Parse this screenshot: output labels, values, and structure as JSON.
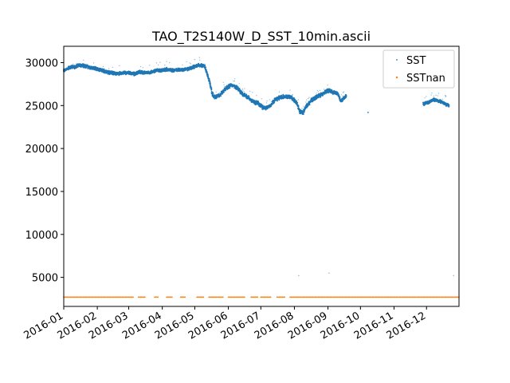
{
  "chart_data": {
    "type": "scatter",
    "title": "TAO_T2S140W_D_SST_10min.ascii",
    "xlabel": "",
    "ylabel": "",
    "x_type": "date",
    "xlim": [
      "2016-01-01",
      "2016-12-31"
    ],
    "ylim": [
      1620,
      31900
    ],
    "grid": false,
    "legend_position": "top-right",
    "x_ticks": [
      "2016-01-01",
      "2016-02-01",
      "2016-03-01",
      "2016-04-01",
      "2016-05-01",
      "2016-06-01",
      "2016-07-01",
      "2016-08-01",
      "2016-09-01",
      "2016-10-01",
      "2016-11-01",
      "2016-12-01"
    ],
    "x_tick_labels": [
      "2016-01",
      "2016-02",
      "2016-03",
      "2016-04",
      "2016-05",
      "2016-06",
      "2016-07",
      "2016-08",
      "2016-09",
      "2016-10",
      "2016-11",
      "2016-12"
    ],
    "y_ticks": [
      5000,
      10000,
      15000,
      20000,
      25000,
      30000
    ],
    "y_tick_labels": [
      "5000",
      "10000",
      "15000",
      "20000",
      "25000",
      "30000"
    ],
    "series": [
      {
        "name": "SST",
        "color": "#1f77b4",
        "marker": "point",
        "x": [
          "2016-01-01",
          "2016-01-06",
          "2016-01-11",
          "2016-01-16",
          "2016-01-21",
          "2016-01-26",
          "2016-01-31",
          "2016-02-05",
          "2016-02-10",
          "2016-02-15",
          "2016-02-20",
          "2016-02-25",
          "2016-03-01",
          "2016-03-06",
          "2016-03-11",
          "2016-03-16",
          "2016-03-21",
          "2016-03-26",
          "2016-03-31",
          "2016-04-05",
          "2016-04-10",
          "2016-04-15",
          "2016-04-20",
          "2016-04-25",
          "2016-04-30",
          "2016-05-05",
          "2016-05-10",
          "2016-05-12",
          "2016-05-15",
          "2016-05-17",
          "2016-05-20",
          "2016-05-25",
          "2016-05-30",
          "2016-06-04",
          "2016-06-09",
          "2016-06-14",
          "2016-06-19",
          "2016-06-24",
          "2016-06-29",
          "2016-07-04",
          "2016-07-09",
          "2016-07-14",
          "2016-07-19",
          "2016-07-24",
          "2016-07-29",
          "2016-08-03",
          "2016-08-06",
          "2016-08-09",
          "2016-08-12",
          "2016-08-17",
          "2016-08-22",
          "2016-08-27",
          "2016-09-01",
          "2016-09-05",
          "2016-09-10",
          "2016-09-13",
          "2016-09-18",
          "2016-10-08",
          "2016-11-28",
          "2016-12-03",
          "2016-12-08",
          "2016-12-13",
          "2016-12-18",
          "2016-12-22"
        ],
        "y": [
          29100,
          29300,
          29400,
          29600,
          29500,
          29300,
          29200,
          29000,
          28800,
          28700,
          28600,
          28700,
          28700,
          28600,
          28800,
          28700,
          28700,
          29000,
          29000,
          29100,
          29000,
          29100,
          29000,
          29200,
          29400,
          29600,
          29500,
          28800,
          27500,
          26200,
          25800,
          26200,
          26900,
          27300,
          26900,
          26200,
          25800,
          25300,
          25100,
          24500,
          24800,
          25500,
          25800,
          25900,
          25800,
          25200,
          24200,
          24000,
          24800,
          25500,
          25900,
          26200,
          26600,
          26400,
          26300,
          25400,
          26100,
          24200,
          25100,
          25300,
          25600,
          25400,
          25100,
          24900
        ],
        "y_band": [
          29000,
          29500,
          29600,
          29800,
          29700,
          29500,
          29400,
          29200,
          29000,
          28900,
          28800,
          28900,
          28900,
          28800,
          29000,
          28900,
          28900,
          29200,
          29200,
          29300,
          29200,
          29300,
          29200,
          29400,
          29600,
          29800,
          29700,
          29000,
          27800,
          26500,
          26100,
          26500,
          27200,
          27500,
          27200,
          26500,
          26100,
          25600,
          25400,
          24800,
          25100,
          25800,
          26100,
          26200,
          26100,
          25500,
          24500,
          24300,
          25100,
          25800,
          26200,
          26500,
          26900,
          26700,
          26500,
          25600,
          26300,
          24200,
          25300,
          25500,
          25800,
          25600,
          25300,
          25100
        ],
        "outliers_x": [
          "2016-08-05",
          "2016-09-02",
          "2016-12-26"
        ],
        "outliers_y": [
          5200,
          5500,
          5200
        ]
      },
      {
        "name": "SSTnan",
        "color": "#ff7f0e",
        "marker": "point",
        "constant_y": 2700,
        "segments": [
          [
            "2016-01-01",
            "2016-03-05"
          ],
          [
            "2016-03-10",
            "2016-03-16"
          ],
          [
            "2016-03-25",
            "2016-03-28"
          ],
          [
            "2016-04-05",
            "2016-04-10"
          ],
          [
            "2016-04-18",
            "2016-04-22"
          ],
          [
            "2016-05-03",
            "2016-05-09"
          ],
          [
            "2016-05-14",
            "2016-05-27"
          ],
          [
            "2016-06-01",
            "2016-06-16"
          ],
          [
            "2016-06-22",
            "2016-06-28"
          ],
          [
            "2016-07-01",
            "2016-07-10"
          ],
          [
            "2016-07-16",
            "2016-07-23"
          ],
          [
            "2016-07-28",
            "2016-12-31"
          ]
        ]
      }
    ]
  }
}
